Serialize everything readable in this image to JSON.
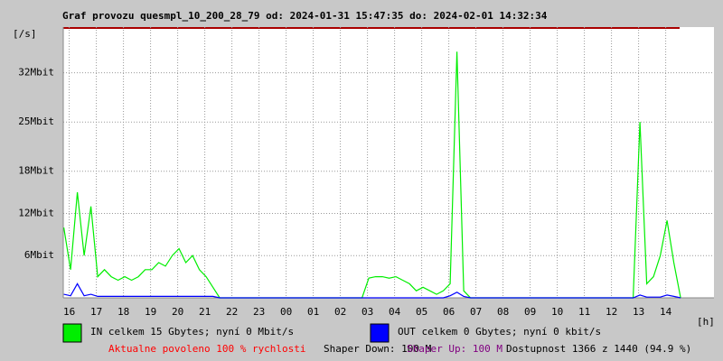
{
  "chart_data": {
    "type": "line",
    "title": "Graf provozu quesmpl_10_200_28_79 od: 2024-01-31 15:47:35 do: 2024-02-01 14:32:34",
    "ylabel": "[/s]",
    "xlabel": "[h]",
    "grid": true,
    "xlim": [
      15.78,
      39.78
    ],
    "ylim": [
      0,
      38.5
    ],
    "yticks": [
      {
        "value": 6,
        "label": "6Mbit"
      },
      {
        "value": 12,
        "label": "12Mbit"
      },
      {
        "value": 18,
        "label": "18Mbit"
      },
      {
        "value": 25,
        "label": "25Mbit"
      },
      {
        "value": 32,
        "label": "32Mbit"
      }
    ],
    "xticks": [
      16,
      17,
      18,
      19,
      20,
      21,
      22,
      23,
      {
        "value": 24,
        "label": "00"
      },
      {
        "value": 25,
        "label": "01"
      },
      {
        "value": 26,
        "label": "02"
      },
      {
        "value": 27,
        "label": "03"
      },
      {
        "value": 28,
        "label": "04"
      },
      {
        "value": 29,
        "label": "05"
      },
      {
        "value": 30,
        "label": "06"
      },
      {
        "value": 31,
        "label": "07"
      },
      {
        "value": 32,
        "label": "08"
      },
      {
        "value": 33,
        "label": "09"
      },
      {
        "value": 34,
        "label": "10"
      },
      {
        "value": 35,
        "label": "11"
      },
      {
        "value": 36,
        "label": "12"
      },
      {
        "value": 37,
        "label": "13"
      },
      {
        "value": 38,
        "label": "14"
      }
    ],
    "x": [
      15.8,
      16.05,
      16.3,
      16.55,
      16.8,
      17.05,
      17.3,
      17.55,
      17.8,
      18.05,
      18.3,
      18.55,
      18.8,
      19.05,
      19.3,
      19.55,
      19.8,
      20.05,
      20.3,
      20.55,
      20.8,
      21.05,
      21.3,
      21.55,
      21.8,
      22.05,
      22.3,
      22.55,
      22.8,
      23.05,
      23.3,
      23.55,
      23.8,
      24.05,
      24.3,
      24.55,
      24.8,
      25.05,
      25.3,
      25.55,
      25.8,
      26.05,
      26.3,
      26.55,
      26.8,
      27.05,
      27.3,
      27.55,
      27.8,
      28.05,
      28.3,
      28.55,
      28.8,
      29.05,
      29.3,
      29.55,
      29.8,
      30.05,
      30.3,
      30.55,
      30.8,
      31.05,
      31.3,
      31.55,
      31.8,
      32.05,
      32.3,
      32.55,
      32.8,
      33.05,
      33.3,
      33.55,
      33.8,
      34.05,
      34.3,
      34.55,
      34.8,
      35.05,
      35.3,
      35.55,
      35.8,
      36.05,
      36.3,
      36.55,
      36.8,
      37.05,
      37.3,
      37.55,
      37.8,
      38.05,
      38.3,
      38.55
    ],
    "series": [
      {
        "name": "IN celkem 15 Gbytes; nyní 0 Mbit/s",
        "color": "#00ee00",
        "values": [
          10,
          4,
          15,
          6,
          13,
          3,
          4,
          3,
          2.5,
          3,
          2.5,
          3,
          4,
          4,
          5,
          4.5,
          6,
          7,
          5,
          6,
          4,
          3,
          1.5,
          0,
          0,
          0,
          0,
          0,
          0,
          0,
          0,
          0,
          0,
          0,
          0,
          0,
          0,
          0,
          0,
          0,
          0,
          0,
          0,
          0,
          0,
          2.8,
          3,
          3,
          2.8,
          3,
          2.5,
          2,
          1,
          1.5,
          1,
          0.5,
          1,
          2,
          35,
          1,
          0,
          0,
          0,
          0,
          0,
          0,
          0,
          0,
          0,
          0,
          0,
          0,
          0,
          0,
          0,
          0,
          0,
          0,
          0,
          0,
          0,
          0,
          0,
          0,
          0,
          25,
          2,
          3,
          6,
          11,
          5,
          0
        ]
      },
      {
        "name": "OUT celkem 0 Gbytes; nyní 0 kbit/s",
        "color": "#0000ff",
        "values": [
          0.5,
          0.3,
          2,
          0.3,
          0.5,
          0.2,
          0.2,
          0.2,
          0.2,
          0.2,
          0.2,
          0.2,
          0.2,
          0.2,
          0.2,
          0.2,
          0.2,
          0.2,
          0.2,
          0.2,
          0.2,
          0.2,
          0.2,
          0,
          0,
          0,
          0,
          0,
          0,
          0,
          0,
          0,
          0,
          0,
          0,
          0,
          0,
          0,
          0,
          0,
          0,
          0,
          0,
          0,
          0,
          0,
          0,
          0,
          0,
          0,
          0,
          0,
          0,
          0,
          0,
          0,
          0,
          0.3,
          0.8,
          0.2,
          0,
          0,
          0,
          0,
          0,
          0,
          0,
          0,
          0,
          0,
          0,
          0,
          0,
          0,
          0,
          0,
          0,
          0,
          0,
          0,
          0,
          0,
          0,
          0,
          0,
          0.4,
          0.1,
          0.1,
          0.1,
          0.4,
          0.2,
          0
        ]
      }
    ],
    "notes": [
      {
        "text": "Aktualne povoleno 100 % rychlosti",
        "color": "#ff0000"
      },
      {
        "text": "Shaper Down: 100 M",
        "color": "#000000"
      },
      {
        "text": "Shaper Up: 100 M",
        "color": "#800080"
      },
      {
        "text": "Dostupnost 1366 z 1440 (94.9 %)",
        "color": "#000000"
      }
    ]
  }
}
